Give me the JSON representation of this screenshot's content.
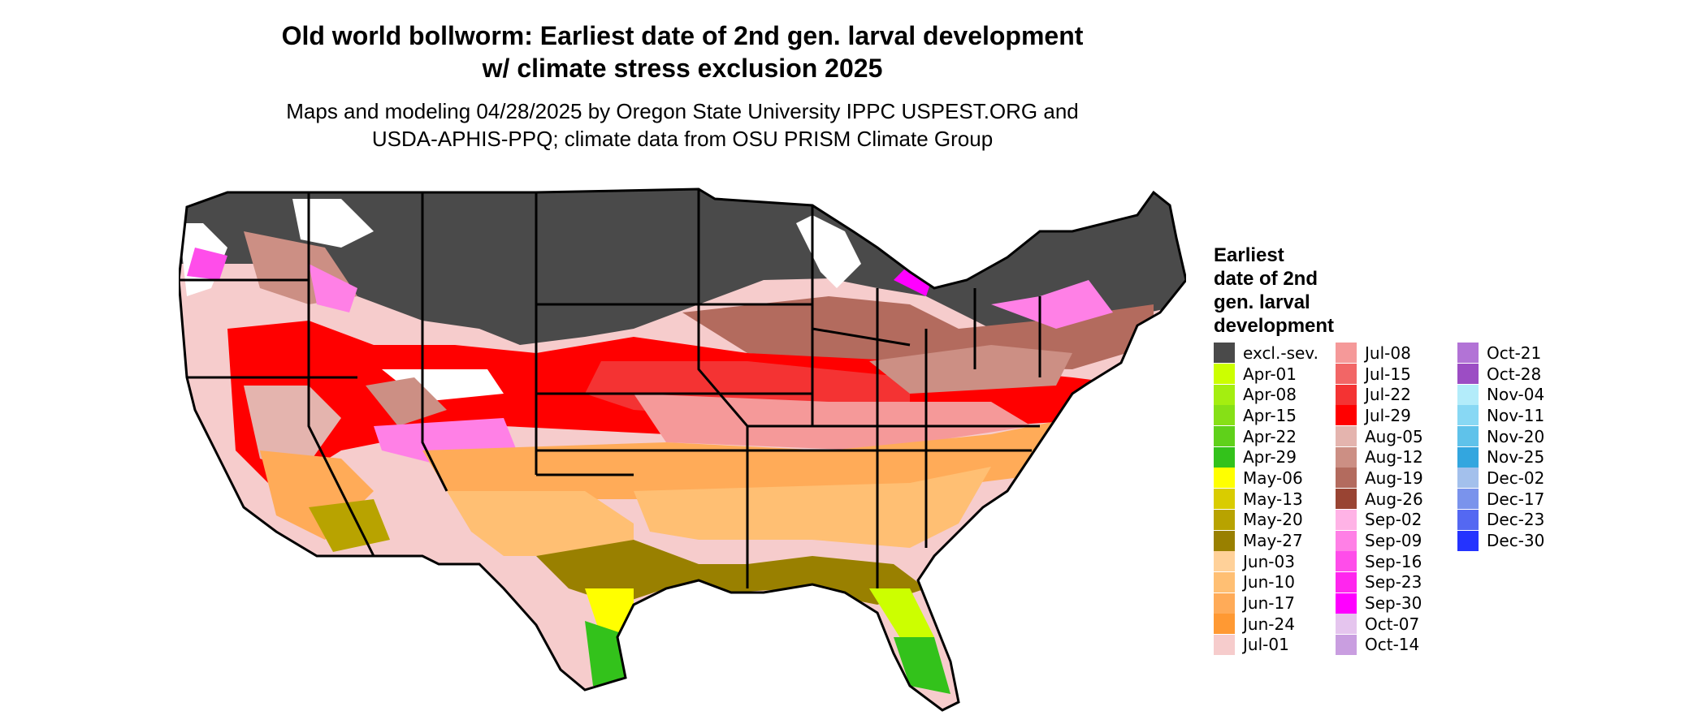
{
  "title_line1": "Old world bollworm: Earliest date of 2nd gen. larval development",
  "title_line2": "w/ climate stress exclusion 2025",
  "subtitle_line1": "Maps and modeling 04/28/2025 by Oregon State University IPPC USPEST.ORG and",
  "subtitle_line2": "USDA-APHIS-PPQ; climate data from OSU PRISM Climate Group",
  "legend": {
    "title_lines": [
      "Earliest",
      "date of 2nd",
      "gen. larval",
      "development"
    ],
    "columns": [
      [
        {
          "label": "excl.-sev.",
          "color": "#4a4a4a"
        },
        {
          "label": "Apr-01",
          "color": "#ccff00"
        },
        {
          "label": "Apr-08",
          "color": "#a4ee10"
        },
        {
          "label": "Apr-15",
          "color": "#86e016"
        },
        {
          "label": "Apr-22",
          "color": "#5fd11a"
        },
        {
          "label": "Apr-29",
          "color": "#33c21b"
        },
        {
          "label": "May-06",
          "color": "#ffff00"
        },
        {
          "label": "May-13",
          "color": "#d9cc00"
        },
        {
          "label": "May-20",
          "color": "#b8a300"
        },
        {
          "label": "May-27",
          "color": "#998000"
        },
        {
          "label": "Jun-03",
          "color": "#ffd199"
        },
        {
          "label": "Jun-10",
          "color": "#ffbf73"
        },
        {
          "label": "Jun-17",
          "color": "#ffab58"
        },
        {
          "label": "Jun-24",
          "color": "#ff9933"
        },
        {
          "label": "Jul-01",
          "color": "#f6cccc"
        }
      ],
      [
        {
          "label": "Jul-08",
          "color": "#f59999"
        },
        {
          "label": "Jul-15",
          "color": "#f26666"
        },
        {
          "label": "Jul-22",
          "color": "#f43333"
        },
        {
          "label": "Jul-29",
          "color": "#ff0000"
        },
        {
          "label": "Aug-05",
          "color": "#e4b4ae"
        },
        {
          "label": "Aug-12",
          "color": "#cc8f84"
        },
        {
          "label": "Aug-19",
          "color": "#b36b5e"
        },
        {
          "label": "Aug-26",
          "color": "#994433"
        },
        {
          "label": "Sep-02",
          "color": "#ffb3e6"
        },
        {
          "label": "Sep-09",
          "color": "#ff80e6"
        },
        {
          "label": "Sep-16",
          "color": "#ff4dea"
        },
        {
          "label": "Sep-23",
          "color": "#ff26ee"
        },
        {
          "label": "Sep-30",
          "color": "#ff00ff"
        },
        {
          "label": "Oct-07",
          "color": "#e5c5ee"
        },
        {
          "label": "Oct-14",
          "color": "#c99ee0"
        }
      ],
      [
        {
          "label": "Oct-21",
          "color": "#b273d6"
        },
        {
          "label": "Oct-28",
          "color": "#9c4dc4"
        },
        {
          "label": "Nov-04",
          "color": "#b3ecfa"
        },
        {
          "label": "Nov-11",
          "color": "#88d8f4"
        },
        {
          "label": "Nov-20",
          "color": "#5fc2ea"
        },
        {
          "label": "Nov-25",
          "color": "#33a6df"
        },
        {
          "label": "Dec-02",
          "color": "#a3c0ec"
        },
        {
          "label": "Dec-17",
          "color": "#7a93ec"
        },
        {
          "label": "Dec-23",
          "color": "#5468f2"
        },
        {
          "label": "Dec-30",
          "color": "#2433ff"
        }
      ]
    ]
  }
}
